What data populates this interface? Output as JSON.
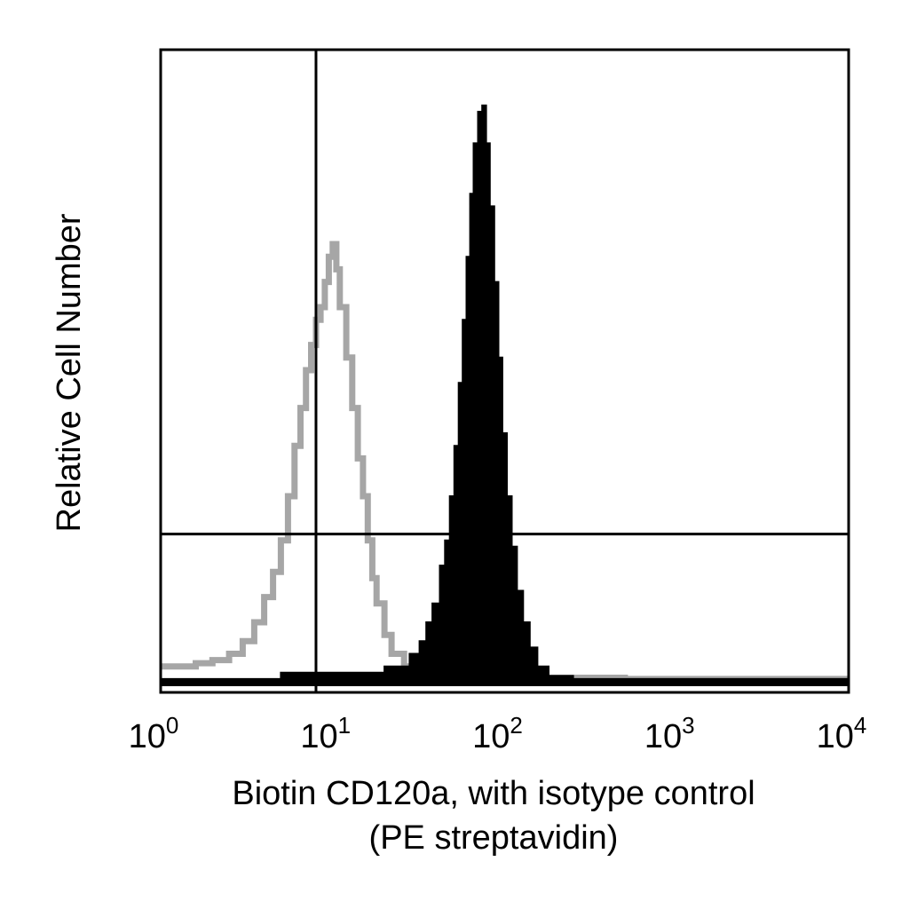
{
  "chart_data": {
    "type": "area",
    "xlabel_line1": "Biotin CD120a, with isotype control",
    "xlabel_line2": "(PE streptavidin)",
    "ylabel": "Relative Cell Number",
    "x_scale": "log",
    "xlim": [
      1,
      10000
    ],
    "ylim": [
      0,
      100
    ],
    "x_ticks": [
      {
        "base": "10",
        "exp": "0",
        "value": 1
      },
      {
        "base": "10",
        "exp": "1",
        "value": 10
      },
      {
        "base": "10",
        "exp": "2",
        "value": 100
      },
      {
        "base": "10",
        "exp": "3",
        "value": 1000
      },
      {
        "base": "10",
        "exp": "4",
        "value": 10000
      }
    ],
    "gates": {
      "x": 8,
      "y": 24
    },
    "grid": false,
    "series": [
      {
        "role": "isotype control",
        "style": "outline",
        "color": "#a6a6a6",
        "points": [
          [
            1.0,
            3
          ],
          [
            1.3,
            3
          ],
          [
            1.6,
            3.5
          ],
          [
            2.0,
            4
          ],
          [
            2.5,
            5
          ],
          [
            3.0,
            7
          ],
          [
            3.5,
            10
          ],
          [
            4.0,
            14
          ],
          [
            4.5,
            18
          ],
          [
            5.0,
            23
          ],
          [
            5.5,
            30
          ],
          [
            6.0,
            38
          ],
          [
            6.5,
            44
          ],
          [
            7.0,
            50
          ],
          [
            7.5,
            54
          ],
          [
            8.0,
            58
          ],
          [
            8.5,
            60
          ],
          [
            9.0,
            64
          ],
          [
            9.5,
            68
          ],
          [
            10.0,
            70
          ],
          [
            10.5,
            66
          ],
          [
            11.0,
            60
          ],
          [
            12.0,
            52
          ],
          [
            13.0,
            44
          ],
          [
            14.0,
            36
          ],
          [
            15.0,
            30
          ],
          [
            16.0,
            23
          ],
          [
            17.0,
            17
          ],
          [
            18.0,
            13
          ],
          [
            20.0,
            8
          ],
          [
            22.0,
            5
          ],
          [
            26.0,
            3
          ],
          [
            35.0,
            2
          ],
          [
            60.0,
            1.5
          ],
          [
            120.0,
            1.2
          ],
          [
            500.0,
            1
          ],
          [
            2000.0,
            1
          ],
          [
            10000.0,
            1
          ]
        ]
      },
      {
        "role": "Biotin CD120a",
        "style": "filled",
        "color": "#000000",
        "points": [
          [
            1.0,
            1
          ],
          [
            5.0,
            2
          ],
          [
            10.0,
            2
          ],
          [
            20.0,
            3
          ],
          [
            28.0,
            5
          ],
          [
            32.0,
            7
          ],
          [
            35.0,
            10
          ],
          [
            38.0,
            13
          ],
          [
            42.0,
            19
          ],
          [
            45.0,
            23
          ],
          [
            48.0,
            30
          ],
          [
            51.0,
            38
          ],
          [
            54.0,
            48
          ],
          [
            57.0,
            58
          ],
          [
            60.0,
            68
          ],
          [
            63.0,
            78
          ],
          [
            66.0,
            86
          ],
          [
            70.0,
            91
          ],
          [
            74.0,
            92
          ],
          [
            78.0,
            86
          ],
          [
            82.0,
            76
          ],
          [
            87.0,
            64
          ],
          [
            92.0,
            52
          ],
          [
            97.0,
            40
          ],
          [
            103.0,
            30
          ],
          [
            110.0,
            22
          ],
          [
            118.0,
            15
          ],
          [
            128.0,
            10
          ],
          [
            140.0,
            6
          ],
          [
            155.0,
            3
          ],
          [
            180.0,
            1.5
          ],
          [
            250.0,
            1
          ],
          [
            1000.0,
            1
          ],
          [
            10000.0,
            1
          ]
        ]
      }
    ]
  }
}
